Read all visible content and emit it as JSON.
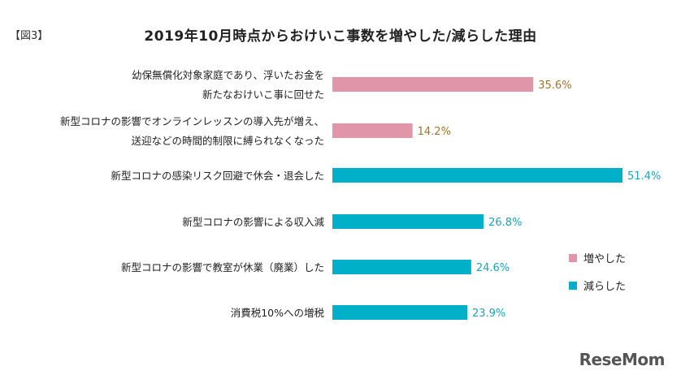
{
  "figure_tag": "【図3】",
  "logo": "ReseMom",
  "colors": {
    "increase": "#e095a8",
    "decrease": "#00afc8",
    "increase_label": "#a0722d",
    "decrease_label": "#1aa5bf"
  },
  "chart_data": {
    "type": "bar",
    "orientation": "horizontal",
    "title": "2019年10月時点からおけいこ事数を増やした/減らした理由",
    "legend_position": "right",
    "legend": [
      {
        "name": "増やした",
        "color_key": "increase"
      },
      {
        "name": "減らした",
        "color_key": "decrease"
      }
    ],
    "xlim": [
      0,
      55
    ],
    "unit": "%",
    "items": [
      {
        "label": [
          "幼保無償化対象家庭であり、浮いたお金を",
          "新たなおけいこ事に回せた"
        ],
        "value": 35.6,
        "value_text": "35.6%",
        "series": "増やした"
      },
      {
        "label": [
          "新型コロナの影響でオンラインレッスンの導入先が増え、",
          "送迎などの時間的制限に縛られなくなった"
        ],
        "value": 14.2,
        "value_text": "14.2%",
        "series": "増やした"
      },
      {
        "label": [
          "新型コロナの感染リスク回避で休会・退会した"
        ],
        "value": 51.4,
        "value_text": "51.4%",
        "series": "減らした"
      },
      {
        "label": [
          "新型コロナの影響による収入減"
        ],
        "value": 26.8,
        "value_text": "26.8%",
        "series": "減らした"
      },
      {
        "label": [
          "新型コロナの影響で教室が休業（廃業）した"
        ],
        "value": 24.6,
        "value_text": "24.6%",
        "series": "減らした"
      },
      {
        "label": [
          "消費税10%への増税"
        ],
        "value": 23.9,
        "value_text": "23.9%",
        "series": "減らした"
      }
    ]
  }
}
